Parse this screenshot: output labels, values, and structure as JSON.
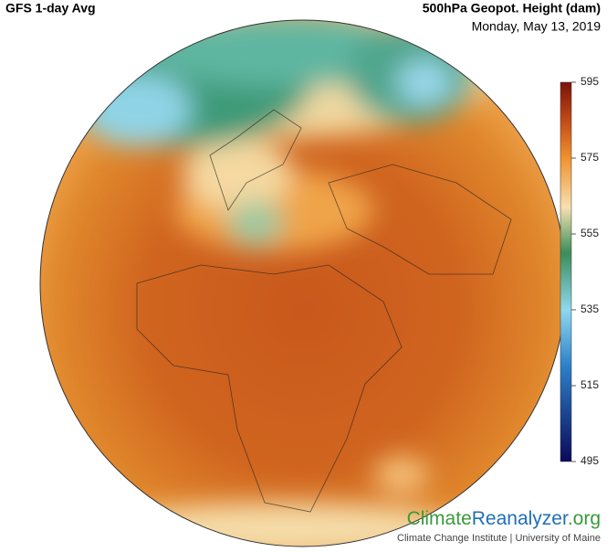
{
  "header": {
    "title": "GFS 1-day Avg",
    "variable": "500hPa Geopot. Height (dam)",
    "date": "Monday, May 13, 2019"
  },
  "colorbar": {
    "ticks": [
      595,
      575,
      555,
      535,
      515,
      495
    ],
    "range": [
      495,
      595
    ]
  },
  "footer": {
    "logo": [
      "Climate",
      "Reanalyzer",
      ".org"
    ],
    "credit": "Climate Change Institute | University of Maine"
  }
}
